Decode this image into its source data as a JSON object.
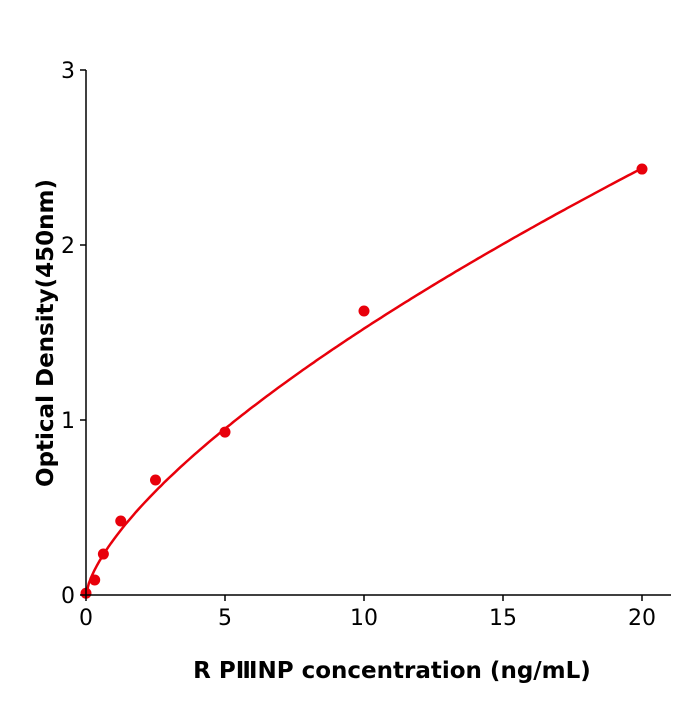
{
  "chart_data": {
    "type": "scatter",
    "title": "",
    "xlabel": "R  PⅢNP concentration (ng/mL)",
    "ylabel": "Optical Density(450nm)",
    "xlim": [
      0,
      21
    ],
    "ylim": [
      0,
      3
    ],
    "xticks": [
      0,
      5,
      10,
      15,
      20
    ],
    "yticks": [
      0,
      1,
      2,
      3
    ],
    "grid": false,
    "color": "#e8000b",
    "series": [
      {
        "x": [
          0,
          0.3125,
          0.625,
          1.25,
          2.5,
          5,
          10,
          20
        ],
        "y": [
          0.01,
          0.086,
          0.234,
          0.423,
          0.657,
          0.931,
          1.623,
          2.434
        ],
        "fit_curve": true
      }
    ]
  }
}
